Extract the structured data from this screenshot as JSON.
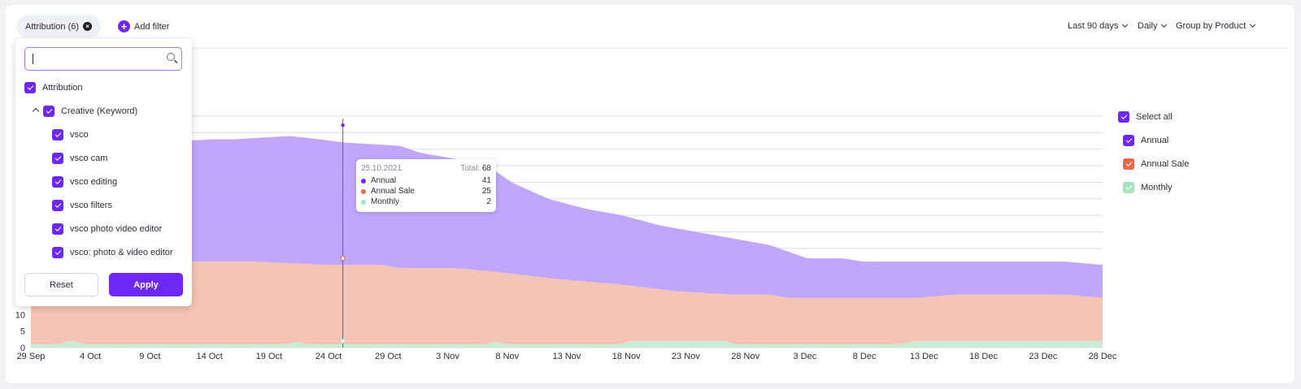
{
  "filter_chip": {
    "label": "Attribution (6)"
  },
  "add_filter": {
    "label": "Add filter"
  },
  "controls": {
    "period": "Last 90 days",
    "granularity": "Daily",
    "group_by": "Group by Product"
  },
  "dropdown": {
    "search_placeholder": "",
    "root": "Attribution",
    "group": "Creative (Keyword)",
    "items": [
      "vsco",
      "vsco cam",
      "vsco editing",
      "vsco filters",
      "vsco photo video editor",
      "vsco: photo & video editor"
    ],
    "reset_label": "Reset",
    "apply_label": "Apply"
  },
  "legend": {
    "select_all": "Select all",
    "items": [
      "Annual",
      "Annual Sale",
      "Monthly"
    ]
  },
  "tooltip": {
    "date": "25.10.2021",
    "total_label": "Total:",
    "total": "68",
    "rows": [
      {
        "label": "Annual",
        "value": "41",
        "color": "#6d28f5"
      },
      {
        "label": "Annual Sale",
        "value": "25",
        "color": "#e56b4c"
      },
      {
        "label": "Monthly",
        "value": "2",
        "color": "#a7e3bf"
      }
    ]
  },
  "chart_data": {
    "type": "area",
    "stacked": true,
    "x_ticks": [
      "29 Sep",
      "4 Oct",
      "9 Oct",
      "14 Oct",
      "19 Oct",
      "24 Oct",
      "29 Oct",
      "3 Nov",
      "8 Nov",
      "13 Nov",
      "18 Nov",
      "23 Nov",
      "28 Nov",
      "3 Dec",
      "8 Dec",
      "13 Dec",
      "18 Dec",
      "23 Dec",
      "28 Dec"
    ],
    "y_ticks_visible": [
      0,
      5,
      10
    ],
    "ylim": [
      0,
      70
    ],
    "grid": true,
    "legend_position": "right",
    "highlight_date": "25.10.2021",
    "series": [
      {
        "name": "Monthly",
        "color": "#c9ecd6",
        "points": [
          [
            0,
            1
          ],
          [
            8,
            1
          ],
          [
            10,
            2
          ],
          [
            12,
            2
          ],
          [
            14,
            1
          ],
          [
            70,
            1
          ],
          [
            72,
            2
          ],
          [
            74,
            1
          ],
          [
            124,
            1
          ],
          [
            126,
            2
          ],
          [
            128,
            1
          ],
          [
            160,
            1
          ],
          [
            162,
            2
          ],
          [
            164,
            2
          ],
          [
            188,
            2
          ],
          [
            190,
            1
          ],
          [
            200,
            1
          ],
          [
            205,
            1
          ],
          [
            235,
            1
          ],
          [
            240,
            2
          ],
          [
            270,
            2
          ],
          [
            275,
            2
          ],
          [
            290,
            2
          ]
        ]
      },
      {
        "name": "Annual Sale",
        "color": "#f3c1b0",
        "points": [
          [
            0,
            25
          ],
          [
            30,
            26
          ],
          [
            60,
            26
          ],
          [
            80,
            25
          ],
          [
            95,
            25
          ],
          [
            100,
            24
          ],
          [
            115,
            24
          ],
          [
            125,
            23
          ],
          [
            140,
            21
          ],
          [
            160,
            19
          ],
          [
            175,
            17
          ],
          [
            190,
            16
          ],
          [
            200,
            16
          ],
          [
            205,
            15
          ],
          [
            240,
            15
          ],
          [
            250,
            16
          ],
          [
            270,
            16
          ],
          [
            280,
            16
          ],
          [
            290,
            15
          ]
        ]
      },
      {
        "name": "Annual",
        "color": "#bea2fc",
        "points": [
          [
            0,
            62
          ],
          [
            10,
            62
          ],
          [
            18,
            62
          ],
          [
            30,
            62
          ],
          [
            50,
            63
          ],
          [
            55,
            63
          ],
          [
            70,
            64
          ],
          [
            78,
            63
          ],
          [
            85,
            62
          ],
          [
            100,
            61
          ],
          [
            105,
            59
          ],
          [
            115,
            57
          ],
          [
            125,
            54
          ],
          [
            130,
            50
          ],
          [
            140,
            45
          ],
          [
            150,
            42
          ],
          [
            160,
            40
          ],
          [
            170,
            37
          ],
          [
            180,
            35
          ],
          [
            190,
            33
          ],
          [
            200,
            31
          ],
          [
            205,
            29
          ],
          [
            210,
            27
          ],
          [
            220,
            27
          ],
          [
            225,
            26
          ],
          [
            235,
            26
          ],
          [
            240,
            26
          ],
          [
            245,
            26
          ],
          [
            255,
            26
          ],
          [
            265,
            26
          ],
          [
            270,
            26
          ],
          [
            280,
            26
          ],
          [
            290,
            25
          ]
        ]
      }
    ],
    "y_totals": [
      64,
      65,
      65,
      66,
      66,
      67,
      68,
      67,
      66,
      65,
      64,
      62,
      60,
      57,
      54,
      50,
      46,
      43,
      41,
      38,
      35,
      34,
      33,
      33,
      32,
      30,
      29,
      29,
      30,
      30,
      31,
      31,
      31,
      31,
      31,
      30
    ]
  }
}
